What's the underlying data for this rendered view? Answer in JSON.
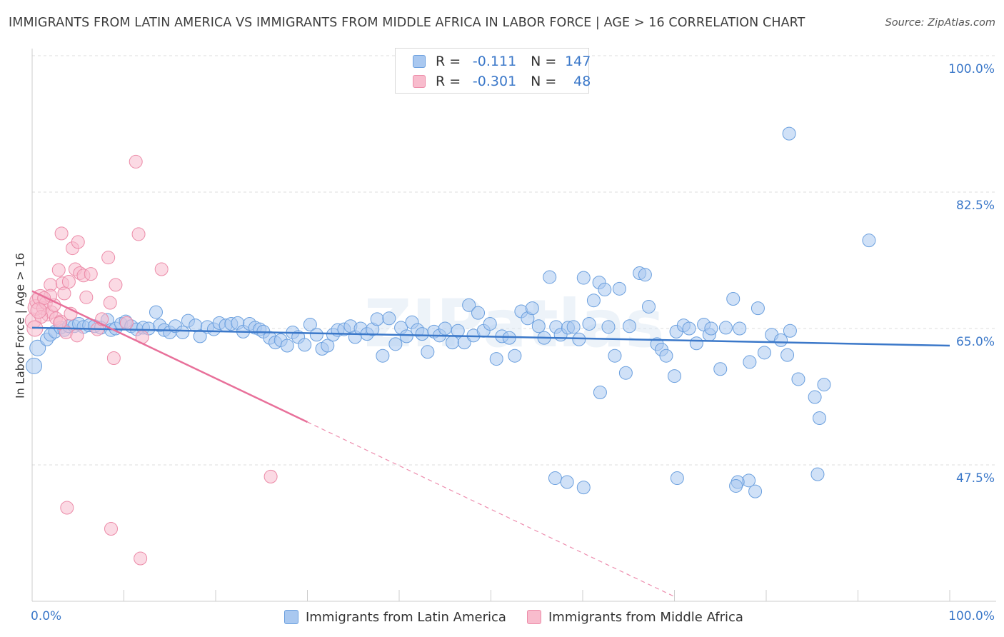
{
  "title": "IMMIGRANTS FROM LATIN AMERICA VS IMMIGRANTS FROM MIDDLE AFRICA IN LABOR FORCE | AGE > 16 CORRELATION CHART",
  "source": "Source: ZipAtlas.com",
  "colors": {
    "blue_fill": "#a9c8f0",
    "blue_stroke": "#6a9fde",
    "blue_line": "#3b78c9",
    "pink_fill": "#f8bccd",
    "pink_stroke": "#ec8ba8",
    "pink_line": "#e8709a",
    "grid": "#dddddd",
    "tick_label": "#3b78c9"
  },
  "legend_top": {
    "r_label": "R =",
    "n_label": "N =",
    "rows": [
      {
        "r": "-0.111",
        "n": "147"
      },
      {
        "r": "-0.301",
        "n": "48"
      }
    ]
  },
  "chart_data": {
    "type": "scatter",
    "title": "IMMIGRANTS FROM LATIN AMERICA VS IMMIGRANTS FROM MIDDLE AFRICA IN LABOR FORCE | AGE > 16 CORRELATION CHART",
    "xlabel": "",
    "ylabel": "In Labor Force | Age > 16",
    "xlim": [
      0,
      100
    ],
    "ylim": [
      30,
      100
    ],
    "x_tick_labels": [
      "0.0%",
      "100.0%"
    ],
    "y_ticks": [
      47.5,
      65.0,
      82.5,
      100.0
    ],
    "y_tick_labels": [
      "47.5%",
      "65.0%",
      "82.5%",
      "100.0%"
    ],
    "grid": true,
    "legend_position": "bottom",
    "series": [
      {
        "name": "Immigrants from Latin America",
        "r": -0.111,
        "n": 147,
        "trend": {
          "x0": 0,
          "y0": 65.1,
          "x1": 100,
          "y1": 62.8
        },
        "points": [
          [
            0.2,
            60.2
          ],
          [
            0.6,
            62.5
          ],
          [
            1.6,
            63.6
          ],
          [
            2.0,
            64.2
          ],
          [
            2.5,
            64.6
          ],
          [
            3.1,
            65.1
          ],
          [
            3.5,
            64.8
          ],
          [
            4.0,
            65.3
          ],
          [
            4.6,
            65.3
          ],
          [
            5.1,
            65.6
          ],
          [
            5.6,
            65.2
          ],
          [
            6.2,
            65.4
          ],
          [
            6.8,
            65.3
          ],
          [
            7.5,
            65.1
          ],
          [
            8.2,
            66.1
          ],
          [
            8.6,
            64.8
          ],
          [
            9.1,
            65.0
          ],
          [
            9.7,
            65.6
          ],
          [
            10.2,
            65.9
          ],
          [
            10.8,
            65.3
          ],
          [
            11.4,
            64.9
          ],
          [
            12.1,
            65.1
          ],
          [
            12.7,
            65.0
          ],
          [
            13.5,
            67.1
          ],
          [
            13.9,
            65.4
          ],
          [
            14.4,
            64.8
          ],
          [
            15.0,
            64.5
          ],
          [
            15.6,
            65.3
          ],
          [
            16.4,
            64.5
          ],
          [
            17.0,
            66.0
          ],
          [
            17.8,
            65.4
          ],
          [
            18.3,
            64.0
          ],
          [
            19.1,
            65.2
          ],
          [
            19.8,
            64.9
          ],
          [
            20.4,
            65.7
          ],
          [
            21.1,
            65.4
          ],
          [
            21.7,
            65.6
          ],
          [
            22.4,
            65.7
          ],
          [
            23.0,
            64.6
          ],
          [
            23.7,
            65.6
          ],
          [
            24.3,
            65.1
          ],
          [
            24.8,
            64.9
          ],
          [
            25.2,
            64.6
          ],
          [
            25.9,
            63.8
          ],
          [
            26.5,
            63.2
          ],
          [
            27.1,
            63.5
          ],
          [
            27.8,
            62.8
          ],
          [
            28.4,
            64.5
          ],
          [
            29.0,
            63.9
          ],
          [
            29.7,
            62.9
          ],
          [
            30.3,
            65.5
          ],
          [
            31.0,
            64.2
          ],
          [
            31.6,
            62.4
          ],
          [
            32.2,
            62.8
          ],
          [
            32.8,
            64.2
          ],
          [
            33.3,
            64.8
          ],
          [
            34.0,
            64.9
          ],
          [
            34.7,
            65.3
          ],
          [
            35.2,
            63.9
          ],
          [
            35.8,
            65.0
          ],
          [
            36.5,
            64.3
          ],
          [
            37.1,
            64.9
          ],
          [
            37.6,
            66.2
          ],
          [
            38.2,
            61.5
          ],
          [
            38.9,
            66.3
          ],
          [
            39.6,
            63.0
          ],
          [
            40.2,
            65.1
          ],
          [
            40.8,
            64.0
          ],
          [
            41.4,
            65.8
          ],
          [
            42.0,
            64.8
          ],
          [
            42.5,
            64.3
          ],
          [
            43.1,
            62.0
          ],
          [
            43.8,
            64.6
          ],
          [
            44.4,
            64.1
          ],
          [
            45.0,
            65.0
          ],
          [
            45.8,
            63.2
          ],
          [
            46.4,
            64.7
          ],
          [
            47.1,
            63.2
          ],
          [
            47.6,
            68.0
          ],
          [
            48.1,
            64.1
          ],
          [
            48.6,
            67.0
          ],
          [
            49.2,
            64.7
          ],
          [
            49.9,
            65.6
          ],
          [
            50.6,
            61.1
          ],
          [
            51.2,
            64.0
          ],
          [
            52.0,
            63.8
          ],
          [
            52.6,
            61.5
          ],
          [
            53.3,
            67.2
          ],
          [
            54.0,
            66.3
          ],
          [
            54.5,
            67.6
          ],
          [
            55.2,
            65.3
          ],
          [
            55.8,
            63.8
          ],
          [
            56.4,
            71.6
          ],
          [
            57.1,
            65.2
          ],
          [
            57.6,
            64.2
          ],
          [
            58.4,
            65.1
          ],
          [
            59.0,
            65.2
          ],
          [
            59.6,
            63.6
          ],
          [
            60.1,
            71.5
          ],
          [
            60.7,
            65.6
          ],
          [
            61.2,
            68.6
          ],
          [
            61.8,
            70.9
          ],
          [
            62.4,
            70.0
          ],
          [
            62.8,
            65.2
          ],
          [
            63.5,
            61.5
          ],
          [
            64.0,
            70.1
          ],
          [
            64.7,
            59.3
          ],
          [
            65.1,
            65.3
          ],
          [
            66.2,
            72.1
          ],
          [
            66.8,
            71.9
          ],
          [
            67.2,
            67.8
          ],
          [
            68.1,
            63.0
          ],
          [
            68.6,
            62.3
          ],
          [
            69.1,
            61.5
          ],
          [
            70.0,
            58.9
          ],
          [
            70.2,
            64.6
          ],
          [
            71.0,
            65.4
          ],
          [
            71.6,
            65.0
          ],
          [
            72.4,
            63.1
          ],
          [
            73.2,
            65.5
          ],
          [
            73.8,
            64.2
          ],
          [
            74.0,
            65.0
          ],
          [
            75.0,
            59.8
          ],
          [
            75.6,
            65.1
          ],
          [
            76.4,
            68.8
          ],
          [
            77.1,
            65.0
          ],
          [
            78.2,
            60.7
          ],
          [
            79.1,
            67.6
          ],
          [
            79.8,
            61.9
          ],
          [
            80.6,
            64.2
          ],
          [
            81.6,
            63.5
          ],
          [
            82.3,
            61.6
          ],
          [
            82.6,
            64.7
          ],
          [
            83.5,
            58.5
          ],
          [
            85.3,
            56.2
          ],
          [
            85.8,
            53.5
          ],
          [
            85.6,
            46.3
          ],
          [
            86.3,
            57.8
          ],
          [
            78.8,
            44.1
          ],
          [
            78.1,
            45.5
          ],
          [
            76.9,
            45.3
          ],
          [
            76.7,
            44.8
          ],
          [
            61.9,
            56.8
          ],
          [
            57.0,
            45.8
          ],
          [
            60.1,
            44.6
          ],
          [
            58.3,
            45.3
          ],
          [
            82.5,
            90.0
          ],
          [
            91.2,
            76.3
          ],
          [
            70.3,
            45.8
          ]
        ]
      },
      {
        "name": "Immigrants from Middle Africa",
        "r": -0.301,
        "n": 48,
        "trend": {
          "x0": 0,
          "y0": 69.8,
          "x1": 30,
          "y1": 53.0,
          "dash_to_x": 70,
          "dash_to_y": 30.6
        },
        "points": [
          [
            0.1,
            66.0
          ],
          [
            0.4,
            67.7
          ],
          [
            0.6,
            68.5
          ],
          [
            0.9,
            69.0
          ],
          [
            1.2,
            67.6
          ],
          [
            1.5,
            68.3
          ],
          [
            1.7,
            66.8
          ],
          [
            2.0,
            70.6
          ],
          [
            2.1,
            67.1
          ],
          [
            2.4,
            68.0
          ],
          [
            2.6,
            66.3
          ],
          [
            2.9,
            72.5
          ],
          [
            3.1,
            65.9
          ],
          [
            3.2,
            77.2
          ],
          [
            3.3,
            70.8
          ],
          [
            3.5,
            69.5
          ],
          [
            3.7,
            64.5
          ],
          [
            4.0,
            71.0
          ],
          [
            4.2,
            66.9
          ],
          [
            4.4,
            75.3
          ],
          [
            4.7,
            72.6
          ],
          [
            4.9,
            64.1
          ],
          [
            5.0,
            76.1
          ],
          [
            5.2,
            72.1
          ],
          [
            5.6,
            71.8
          ],
          [
            5.9,
            69.0
          ],
          [
            6.4,
            72.0
          ],
          [
            7.1,
            64.9
          ],
          [
            7.6,
            66.2
          ],
          [
            8.3,
            74.1
          ],
          [
            8.5,
            68.3
          ],
          [
            8.9,
            61.2
          ],
          [
            9.1,
            70.6
          ],
          [
            10.3,
            65.7
          ],
          [
            11.3,
            86.4
          ],
          [
            11.6,
            77.1
          ],
          [
            12.0,
            63.9
          ],
          [
            14.1,
            72.6
          ],
          [
            2.0,
            69.2
          ],
          [
            3.0,
            65.7
          ],
          [
            1.3,
            68.9
          ],
          [
            1.0,
            66.5
          ],
          [
            0.7,
            67.3
          ],
          [
            0.3,
            65.0
          ],
          [
            26.0,
            46.0
          ],
          [
            3.8,
            42.0
          ],
          [
            8.6,
            39.3
          ],
          [
            11.8,
            35.5
          ]
        ]
      }
    ]
  },
  "legend_bottom": {
    "items": [
      "Immigrants from Latin America",
      "Immigrants from Middle Africa"
    ]
  }
}
